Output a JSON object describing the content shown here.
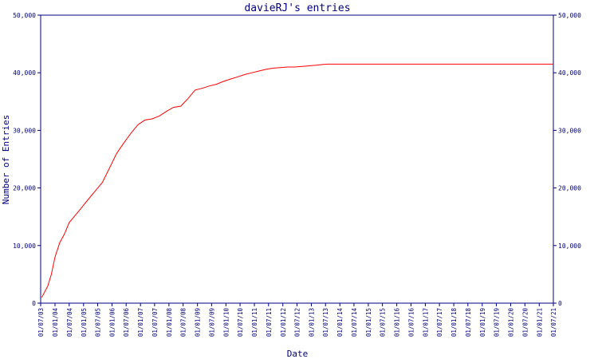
{
  "chart_data": {
    "type": "line",
    "title": "davieRJ's entries",
    "xlabel": "Date",
    "ylabel": "Number of Entries",
    "ylim": [
      0,
      50000
    ],
    "y_ticks": [
      0,
      10000,
      20000,
      30000,
      40000,
      50000
    ],
    "y_tick_labels": [
      "0",
      "10,000",
      "20,000",
      "30,000",
      "40,000",
      "50,000"
    ],
    "x_tick_labels": [
      "01/07/03",
      "01/01/04",
      "01/07/04",
      "01/01/05",
      "01/07/05",
      "01/01/06",
      "01/07/06",
      "01/01/07",
      "01/07/07",
      "01/01/08",
      "01/07/08",
      "01/01/09",
      "01/07/09",
      "01/01/10",
      "01/07/10",
      "01/01/11",
      "01/07/11",
      "01/01/12",
      "01/07/12",
      "01/01/13",
      "01/07/13",
      "01/01/14",
      "01/07/14",
      "01/01/15",
      "01/07/15",
      "01/01/16",
      "01/07/16",
      "01/01/17",
      "01/07/17",
      "01/01/18",
      "01/07/18",
      "01/01/19",
      "01/07/19",
      "01/01/20",
      "01/07/20",
      "01/01/21",
      "01/07/21"
    ],
    "grid": false,
    "line_color": "#ff0000",
    "axis_color": "#000080",
    "series": [
      {
        "x": [
          "2003-07-15",
          "2003-10-01",
          "2003-11-15",
          "2004-01-01",
          "2004-03-01",
          "2004-05-01",
          "2004-07-01",
          "2004-09-01",
          "2004-12-01",
          "2005-03-01",
          "2005-06-01",
          "2005-09-01",
          "2005-12-01",
          "2006-03-01",
          "2006-06-01",
          "2006-09-01",
          "2006-12-01",
          "2007-03-01",
          "2007-06-01",
          "2007-09-01",
          "2007-12-01",
          "2008-03-01",
          "2008-06-01",
          "2008-09-01",
          "2008-12-01",
          "2009-03-01",
          "2009-06-01",
          "2009-09-01",
          "2009-12-01",
          "2010-03-01",
          "2010-06-01",
          "2010-09-01",
          "2010-12-01",
          "2011-03-01",
          "2011-06-01",
          "2011-09-01",
          "2011-12-01",
          "2012-03-01",
          "2012-06-01",
          "2012-09-01",
          "2012-12-01",
          "2013-03-01",
          "2013-06-01",
          "2013-08-01",
          "2014-01-01",
          "2015-01-01",
          "2016-01-01",
          "2017-01-01",
          "2018-01-01",
          "2019-01-01",
          "2020-01-01",
          "2021-01-01",
          "2021-07-01"
        ],
        "values": [
          1000,
          3000,
          5000,
          8000,
          10500,
          12000,
          14000,
          15000,
          16500,
          18000,
          19500,
          21000,
          23500,
          26000,
          27800,
          29500,
          31000,
          31800,
          32000,
          32500,
          33300,
          34000,
          34200,
          35500,
          37000,
          37300,
          37700,
          38000,
          38500,
          38900,
          39300,
          39700,
          40000,
          40300,
          40600,
          40800,
          40900,
          41000,
          41000,
          41100,
          41200,
          41300,
          41450,
          41500,
          41500,
          41500,
          41500,
          41500,
          41500,
          41500,
          41500,
          41500,
          41500
        ]
      }
    ]
  }
}
